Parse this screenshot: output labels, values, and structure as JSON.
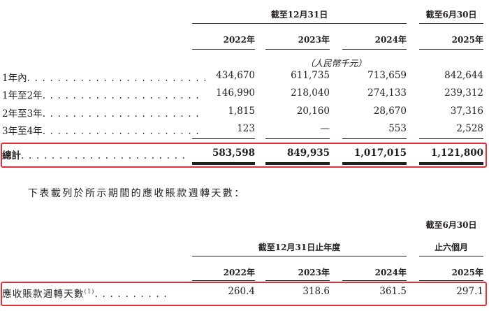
{
  "table1": {
    "group_header_1": "截至12月31日",
    "group_header_2": "截至6月30日",
    "years": [
      "2022年",
      "2023年",
      "2024年",
      "2025年"
    ],
    "unit": "（人民幣千元）",
    "rows": [
      {
        "label": "1年內",
        "dots": ". . . . . . . . . . . . . . . . . . . . . . . .",
        "values": [
          "434,670",
          "611,735",
          "713,659",
          "842,644"
        ]
      },
      {
        "label": "1年至2年",
        "dots": ". . . . . . . . . . . . . . . . . . . . .",
        "values": [
          "146,990",
          "218,040",
          "274,133",
          "239,312"
        ]
      },
      {
        "label": "2年至3年",
        "dots": ". . . . . . . . . . . . . . . . . . . . .",
        "values": [
          "1,815",
          "20,160",
          "28,670",
          "37,316"
        ]
      },
      {
        "label": "3年至4年",
        "dots": ". . . . . . . . . . . . . . . . . . . . .",
        "values": [
          "123",
          "—",
          "553",
          "2,528"
        ]
      }
    ],
    "total": {
      "label": "總計",
      "dots": ". . . . . . . . . . . . . . . . . . . . . .",
      "values": [
        "583,598",
        "849,935",
        "1,017,015",
        "1,121,800"
      ]
    }
  },
  "intro_text": "下表載列於所示期間的應收賬款週轉天數：",
  "table2": {
    "group_header_1": "截至12月31日止年度",
    "group_header_2_line1": "截至6月30日",
    "group_header_2_line2": "止六個月",
    "years": [
      "2022年",
      "2023年",
      "2024年",
      "2025年"
    ],
    "row": {
      "label": "應收賬款週轉天數",
      "footnote": "(1)",
      "dots": ". . . . . . . . . .",
      "values": [
        "260.4",
        "318.6",
        "361.5",
        "297.1"
      ]
    }
  },
  "colors": {
    "highlight_box": "#e0313a",
    "text": "#231f20"
  }
}
